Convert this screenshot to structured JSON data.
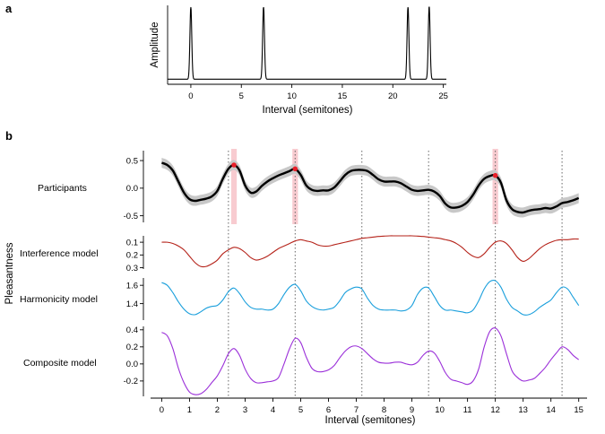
{
  "panel_a": {
    "label": "a",
    "chart_data": {
      "type": "line",
      "xlabel": "Interval (semitones)",
      "ylabel": "Amplitude",
      "xlim": [
        -2.3,
        25.3
      ],
      "x_ticks": [
        0,
        5,
        10,
        15,
        20,
        25
      ],
      "peaks": [
        {
          "x": 0,
          "amp": 1.0
        },
        {
          "x": 7.2,
          "amp": 1.0
        },
        {
          "x": 21.5,
          "amp": 1.0
        },
        {
          "x": 23.6,
          "amp": 1.0
        }
      ],
      "baseline": 0.02
    }
  },
  "panel_b": {
    "label": "b",
    "ylabel": "Pleasantness",
    "xlabel": "Interval (semitones)",
    "xlim": [
      -0.4,
      15.3
    ],
    "x_ticks": [
      0,
      1,
      2,
      3,
      4,
      5,
      6,
      7,
      8,
      9,
      10,
      11,
      12,
      13,
      14,
      15
    ],
    "reference_lines": [
      2.4,
      4.8,
      7.2,
      9.6,
      12.0,
      14.4
    ],
    "highlights": [
      {
        "x": 2.6,
        "width": 0.2,
        "peak": 0.42
      },
      {
        "x": 4.8,
        "width": 0.2,
        "peak": 0.35
      },
      {
        "x": 12.0,
        "width": 0.2,
        "peak": 0.23
      }
    ],
    "chart_data": [
      {
        "type": "line",
        "name": "Participants",
        "color": "#000000",
        "band_color": "#c8c8c8",
        "highlight_color": "#f6b9c0",
        "peak_color": "#e8202a",
        "ylim": [
          -0.62,
          0.68
        ],
        "y_ticks": [
          0.5,
          0.0,
          -0.5
        ],
        "y_tick_labels": [
          "0.5",
          "0.0",
          "-0.5"
        ],
        "band_halfwidth": 0.09,
        "x": [
          0,
          0.2,
          0.4,
          0.6,
          0.8,
          1,
          1.2,
          1.4,
          1.6,
          1.8,
          2,
          2.2,
          2.4,
          2.6,
          2.8,
          3,
          3.2,
          3.4,
          3.6,
          3.8,
          4,
          4.2,
          4.4,
          4.6,
          4.8,
          5,
          5.2,
          5.4,
          5.6,
          5.8,
          6,
          6.2,
          6.4,
          6.6,
          6.8,
          7,
          7.2,
          7.4,
          7.6,
          7.8,
          8,
          8.2,
          8.4,
          8.6,
          8.8,
          9,
          9.2,
          9.4,
          9.6,
          9.8,
          10,
          10.2,
          10.4,
          10.6,
          10.8,
          11,
          11.2,
          11.4,
          11.6,
          11.8,
          12,
          12.2,
          12.4,
          12.6,
          12.8,
          13,
          13.2,
          13.4,
          13.6,
          13.8,
          14,
          14.2,
          14.4,
          14.6,
          14.8,
          15
        ],
        "y": [
          0.46,
          0.42,
          0.32,
          0.12,
          -0.08,
          -0.2,
          -0.23,
          -0.21,
          -0.19,
          -0.15,
          -0.05,
          0.17,
          0.35,
          0.42,
          0.32,
          0.05,
          -0.08,
          -0.06,
          0.04,
          0.12,
          0.18,
          0.23,
          0.27,
          0.31,
          0.35,
          0.24,
          0.05,
          -0.03,
          -0.05,
          -0.04,
          -0.04,
          0.01,
          0.12,
          0.24,
          0.31,
          0.33,
          0.33,
          0.31,
          0.24,
          0.16,
          0.12,
          0.12,
          0.12,
          0.09,
          0.03,
          -0.03,
          -0.05,
          -0.04,
          -0.03,
          -0.06,
          -0.14,
          -0.28,
          -0.35,
          -0.35,
          -0.32,
          -0.25,
          -0.12,
          0.05,
          0.17,
          0.22,
          0.23,
          0.1,
          -0.22,
          -0.38,
          -0.43,
          -0.44,
          -0.41,
          -0.39,
          -0.38,
          -0.36,
          -0.37,
          -0.33,
          -0.27,
          -0.25,
          -0.22,
          -0.18
        ]
      },
      {
        "type": "line",
        "name": "Interference model",
        "color": "#b5231a",
        "ylim": [
          0.31,
          0.05
        ],
        "y_ticks": [
          0.1,
          0.2,
          0.3
        ],
        "y_tick_labels": [
          "0.1",
          "0.2",
          "0.3"
        ],
        "x": [
          0,
          0.2,
          0.4,
          0.6,
          0.8,
          1,
          1.2,
          1.4,
          1.6,
          1.8,
          2,
          2.2,
          2.4,
          2.6,
          2.8,
          3,
          3.2,
          3.4,
          3.6,
          3.8,
          4,
          4.2,
          4.4,
          4.6,
          4.8,
          5,
          5.2,
          5.4,
          5.6,
          5.8,
          6,
          6.2,
          6.4,
          6.6,
          6.8,
          7,
          7.2,
          7.4,
          7.6,
          7.8,
          8,
          8.2,
          8.4,
          8.6,
          8.8,
          9,
          9.2,
          9.4,
          9.6,
          9.8,
          10,
          10.2,
          10.4,
          10.6,
          10.8,
          11,
          11.2,
          11.4,
          11.6,
          11.8,
          12,
          12.2,
          12.4,
          12.6,
          12.8,
          13,
          13.2,
          13.4,
          13.6,
          13.8,
          14,
          14.2,
          14.4,
          14.6,
          14.8,
          15
        ],
        "y": [
          0.1,
          0.1,
          0.11,
          0.13,
          0.16,
          0.21,
          0.26,
          0.29,
          0.29,
          0.27,
          0.24,
          0.19,
          0.16,
          0.14,
          0.15,
          0.18,
          0.22,
          0.24,
          0.23,
          0.21,
          0.18,
          0.15,
          0.13,
          0.11,
          0.09,
          0.08,
          0.09,
          0.1,
          0.12,
          0.13,
          0.13,
          0.12,
          0.11,
          0.1,
          0.09,
          0.08,
          0.07,
          0.065,
          0.06,
          0.055,
          0.052,
          0.05,
          0.05,
          0.05,
          0.05,
          0.05,
          0.052,
          0.055,
          0.06,
          0.065,
          0.07,
          0.08,
          0.09,
          0.11,
          0.14,
          0.18,
          0.21,
          0.22,
          0.19,
          0.14,
          0.1,
          0.09,
          0.11,
          0.16,
          0.22,
          0.25,
          0.23,
          0.19,
          0.15,
          0.12,
          0.1,
          0.085,
          0.08,
          0.08,
          0.075,
          0.075
        ]
      },
      {
        "type": "line",
        "name": "Harmonicity model",
        "color": "#1a9fdc",
        "ylim": [
          1.22,
          1.68
        ],
        "y_ticks": [
          1.4,
          1.6
        ],
        "y_tick_labels": [
          "1.4",
          "1.6"
        ],
        "x": [
          0,
          0.2,
          0.4,
          0.6,
          0.8,
          1,
          1.2,
          1.4,
          1.6,
          1.8,
          2,
          2.2,
          2.4,
          2.6,
          2.8,
          3,
          3.2,
          3.4,
          3.6,
          3.8,
          4,
          4.2,
          4.4,
          4.6,
          4.8,
          5,
          5.2,
          5.4,
          5.6,
          5.8,
          6,
          6.2,
          6.4,
          6.6,
          6.8,
          7,
          7.2,
          7.4,
          7.6,
          7.8,
          8,
          8.2,
          8.4,
          8.6,
          8.8,
          9,
          9.2,
          9.4,
          9.6,
          9.8,
          10,
          10.2,
          10.4,
          10.6,
          10.8,
          11,
          11.2,
          11.4,
          11.6,
          11.8,
          12,
          12.2,
          12.4,
          12.6,
          12.8,
          13,
          13.2,
          13.4,
          13.6,
          13.8,
          14,
          14.2,
          14.4,
          14.6,
          14.8,
          15
        ],
        "y": [
          1.63,
          1.6,
          1.52,
          1.42,
          1.34,
          1.29,
          1.28,
          1.31,
          1.35,
          1.37,
          1.38,
          1.44,
          1.53,
          1.57,
          1.51,
          1.42,
          1.36,
          1.34,
          1.34,
          1.33,
          1.34,
          1.4,
          1.5,
          1.58,
          1.61,
          1.54,
          1.43,
          1.37,
          1.34,
          1.33,
          1.34,
          1.36,
          1.43,
          1.52,
          1.56,
          1.58,
          1.56,
          1.46,
          1.38,
          1.34,
          1.33,
          1.33,
          1.33,
          1.32,
          1.33,
          1.38,
          1.5,
          1.57,
          1.57,
          1.48,
          1.38,
          1.33,
          1.33,
          1.32,
          1.31,
          1.3,
          1.33,
          1.43,
          1.56,
          1.64,
          1.65,
          1.58,
          1.45,
          1.36,
          1.32,
          1.28,
          1.28,
          1.31,
          1.36,
          1.4,
          1.44,
          1.52,
          1.58,
          1.56,
          1.47,
          1.38
        ]
      },
      {
        "type": "line",
        "name": "Composite model",
        "color": "#9b30d9",
        "ylim": [
          -0.38,
          0.44
        ],
        "y_ticks": [
          0.4,
          0.2,
          0.0,
          -0.2
        ],
        "y_tick_labels": [
          "0.4",
          "0.2",
          "0.0",
          "-0.2"
        ],
        "x": [
          0,
          0.2,
          0.4,
          0.6,
          0.8,
          1,
          1.2,
          1.4,
          1.6,
          1.8,
          2,
          2.2,
          2.4,
          2.6,
          2.8,
          3,
          3.2,
          3.4,
          3.6,
          3.8,
          4,
          4.2,
          4.4,
          4.6,
          4.8,
          5,
          5.2,
          5.4,
          5.6,
          5.8,
          6,
          6.2,
          6.4,
          6.6,
          6.8,
          7,
          7.2,
          7.4,
          7.6,
          7.8,
          8,
          8.2,
          8.4,
          8.6,
          8.8,
          9,
          9.2,
          9.4,
          9.6,
          9.8,
          10,
          10.2,
          10.4,
          10.6,
          10.8,
          11,
          11.2,
          11.4,
          11.6,
          11.8,
          12,
          12.2,
          12.4,
          12.6,
          12.8,
          13,
          13.2,
          13.4,
          13.6,
          13.8,
          14,
          14.2,
          14.4,
          14.6,
          14.8,
          15
        ],
        "y": [
          0.37,
          0.33,
          0.18,
          -0.05,
          -0.22,
          -0.33,
          -0.36,
          -0.35,
          -0.3,
          -0.22,
          -0.14,
          -0.02,
          0.12,
          0.18,
          0.1,
          -0.06,
          -0.17,
          -0.22,
          -0.22,
          -0.21,
          -0.2,
          -0.16,
          0.0,
          0.18,
          0.3,
          0.25,
          0.08,
          -0.05,
          -0.09,
          -0.09,
          -0.07,
          -0.02,
          0.07,
          0.15,
          0.2,
          0.21,
          0.18,
          0.12,
          0.06,
          0.02,
          0.01,
          0.01,
          0.02,
          0.02,
          0.0,
          -0.01,
          0.02,
          0.1,
          0.15,
          0.13,
          0.03,
          -0.1,
          -0.18,
          -0.2,
          -0.22,
          -0.24,
          -0.2,
          -0.06,
          0.2,
          0.38,
          0.42,
          0.33,
          0.12,
          -0.08,
          -0.16,
          -0.2,
          -0.19,
          -0.17,
          -0.11,
          -0.04,
          0.05,
          0.13,
          0.2,
          0.17,
          0.1,
          0.05
        ]
      }
    ]
  }
}
